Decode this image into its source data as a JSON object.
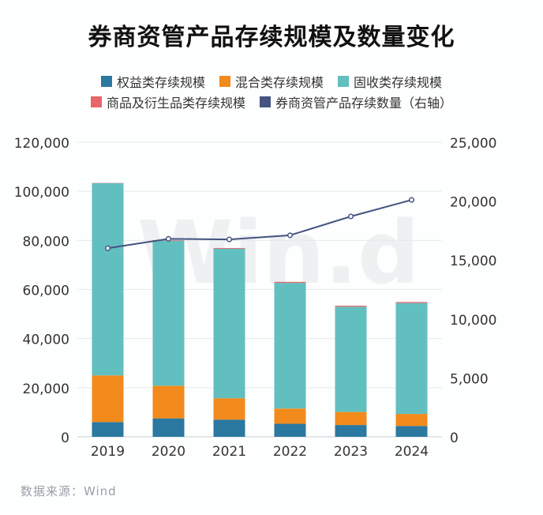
{
  "title": "券商资管产品存续规模及数量变化",
  "source": "数据来源：Wind",
  "watermark": "Win.d",
  "legend": [
    {
      "label": "权益类存续规模",
      "color": "#2b78a1"
    },
    {
      "label": "混合类存续规模",
      "color": "#f28a1c"
    },
    {
      "label": "固收类存续规模",
      "color": "#62bfc0"
    },
    {
      "label": "商品及衍生品类存续规模",
      "color": "#e8666a"
    },
    {
      "label": "券商资管产品存续数量（右轴）",
      "color": "#44537f"
    }
  ],
  "chart_data": {
    "type": "bar",
    "stacked": true,
    "categories": [
      "2019",
      "2020",
      "2021",
      "2022",
      "2023",
      "2024"
    ],
    "series": [
      {
        "name": "权益类存续规模",
        "values": [
          6000,
          7500,
          7000,
          5300,
          4800,
          4400
        ],
        "color": "#2b78a1"
      },
      {
        "name": "混合类存续规模",
        "values": [
          19000,
          13300,
          8700,
          6200,
          5300,
          4900
        ],
        "color": "#f28a1c"
      },
      {
        "name": "固收类存续规模",
        "values": [
          78300,
          59100,
          60900,
          51200,
          42900,
          45200
        ],
        "color": "#62bfc0"
      },
      {
        "name": "商品及衍生品类存续规模",
        "values": [
          100,
          200,
          300,
          400,
          400,
          400
        ],
        "color": "#e8666a"
      }
    ],
    "line_series": {
      "name": "券商资管产品存续数量（右轴）",
      "values": [
        16000,
        16800,
        16750,
        17100,
        18700,
        20100
      ],
      "color": "#44537f",
      "axis": "right"
    },
    "ylim_left": [
      0,
      120000
    ],
    "yticks_left": [
      "0",
      "20,000",
      "40,000",
      "60,000",
      "80,000",
      "100,000",
      "120,000"
    ],
    "ylim_right": [
      0,
      25000
    ],
    "yticks_right": [
      "0",
      "5,000",
      "10,000",
      "15,000",
      "20,000",
      "25,000"
    ],
    "grid": true
  }
}
